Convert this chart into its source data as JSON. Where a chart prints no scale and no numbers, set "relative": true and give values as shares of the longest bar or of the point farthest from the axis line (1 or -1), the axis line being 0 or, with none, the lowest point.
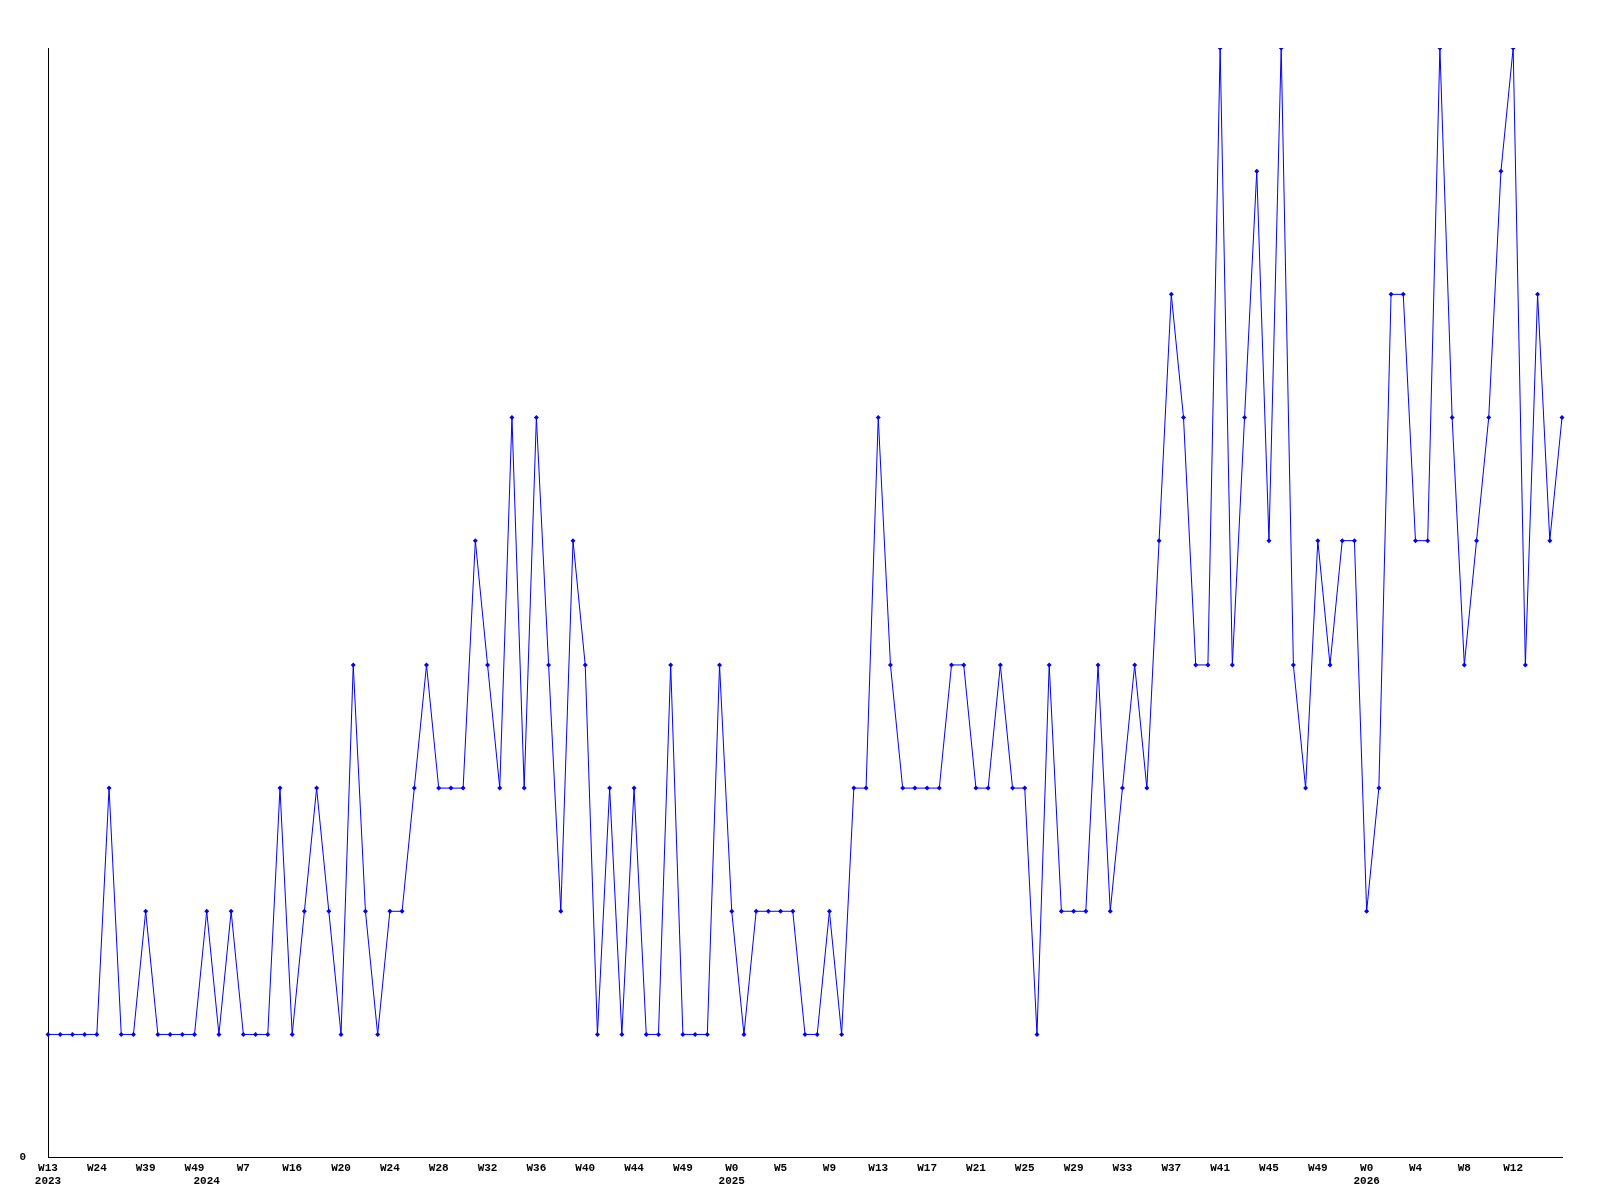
{
  "chart_data": {
    "type": "line",
    "relative": true,
    "legend": false,
    "grid": false,
    "marker": "diamond",
    "line_style": "solid",
    "categories": [
      "W13\n2023",
      null,
      null,
      null,
      "W24",
      null,
      null,
      null,
      "W39",
      null,
      null,
      null,
      "W49",
      "\n2024",
      null,
      null,
      "W7",
      null,
      null,
      null,
      "W16",
      null,
      null,
      null,
      "W20",
      null,
      null,
      null,
      "W24",
      null,
      null,
      null,
      "W28",
      null,
      null,
      null,
      "W32",
      null,
      null,
      null,
      "W36",
      null,
      null,
      null,
      "W40",
      null,
      null,
      null,
      "W44",
      null,
      null,
      null,
      "W49",
      null,
      null,
      null,
      "W0\n2025",
      null,
      null,
      null,
      "W5",
      null,
      null,
      null,
      "W9",
      null,
      null,
      null,
      "W13",
      null,
      null,
      null,
      "W17",
      null,
      null,
      null,
      "W21",
      null,
      null,
      null,
      "W25",
      null,
      null,
      null,
      "W29",
      null,
      null,
      null,
      "W33",
      null,
      null,
      null,
      "W37",
      null,
      null,
      null,
      "W41",
      null,
      null,
      null,
      "W45",
      null,
      null,
      null,
      "W49",
      null,
      null,
      null,
      "W0\n2026",
      null,
      null,
      null,
      "W4",
      null,
      null,
      null,
      "W8",
      null,
      null,
      null,
      "W12",
      null,
      null,
      null,
      null
    ],
    "series": [
      {
        "color": "#0000ff",
        "values": [
          0.111,
          0.111,
          0.111,
          0.111,
          0.111,
          0.333,
          0.111,
          0.111,
          0.222,
          0.111,
          0.111,
          0.111,
          0.111,
          0.222,
          0.111,
          0.222,
          0.111,
          0.111,
          0.111,
          0.333,
          0.111,
          0.222,
          0.333,
          0.222,
          0.111,
          0.444,
          0.222,
          0.111,
          0.222,
          0.222,
          0.333,
          0.444,
          0.333,
          0.333,
          0.333,
          0.556,
          0.444,
          0.333,
          0.667,
          0.333,
          0.667,
          0.444,
          0.222,
          0.556,
          0.444,
          0.111,
          0.333,
          0.111,
          0.333,
          0.111,
          0.111,
          0.444,
          0.111,
          0.111,
          0.111,
          0.444,
          0.222,
          0.111,
          0.222,
          0.222,
          0.222,
          0.222,
          0.111,
          0.111,
          0.222,
          0.111,
          0.333,
          0.333,
          0.667,
          0.444,
          0.333,
          0.333,
          0.333,
          0.333,
          0.444,
          0.444,
          0.333,
          0.333,
          0.444,
          0.333,
          0.333,
          0.111,
          0.444,
          0.222,
          0.222,
          0.222,
          0.444,
          0.222,
          0.333,
          0.444,
          0.333,
          0.556,
          0.778,
          0.667,
          0.444,
          0.444,
          1,
          0.444,
          0.667,
          0.889,
          0.556,
          1,
          0.444,
          0.333,
          0.556,
          0.444,
          0.556,
          0.556,
          0.222,
          0.333,
          0.778,
          0.778,
          0.556,
          0.556,
          1,
          0.667,
          0.444,
          0.556,
          0.667,
          0.889,
          1,
          0.444,
          0.778,
          0.556,
          0.667
        ]
      }
    ],
    "annotations": [
      "0"
    ]
  }
}
